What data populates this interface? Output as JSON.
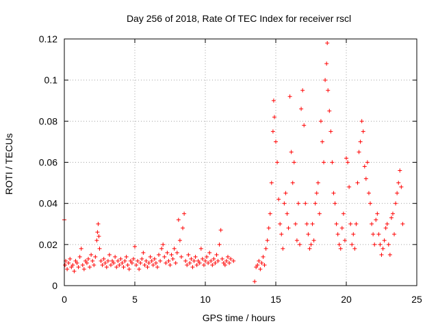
{
  "chart_data": {
    "type": "scatter",
    "title": "Day 256 of 2018, Rate Of TEC Index for receiver rscl",
    "xlabel": "GPS time / hours",
    "ylabel": "ROTI / TECUs",
    "xlim": [
      0,
      25
    ],
    "ylim": [
      0,
      0.12
    ],
    "xticks": [
      0,
      5,
      10,
      15,
      20,
      25
    ],
    "xtick_labels": [
      "0",
      "5",
      "10",
      "15",
      "20",
      "25"
    ],
    "yticks": [
      0,
      0.02,
      0.04,
      0.06,
      0.08,
      0.1,
      0.12
    ],
    "ytick_labels": [
      "0",
      "0.02",
      "0.04",
      "0.06",
      "0.08",
      "0.1",
      "0.12"
    ],
    "grid": true,
    "marker": "+",
    "series_color": "#ff0000",
    "series": [
      {
        "name": "ROTI",
        "points": [
          [
            0.0,
            0.032
          ],
          [
            0.05,
            0.01
          ],
          [
            0.1,
            0.012
          ],
          [
            0.2,
            0.008
          ],
          [
            0.3,
            0.011
          ],
          [
            0.4,
            0.013
          ],
          [
            0.5,
            0.009
          ],
          [
            0.6,
            0.01
          ],
          [
            0.7,
            0.007
          ],
          [
            0.8,
            0.012
          ],
          [
            0.9,
            0.011
          ],
          [
            1.0,
            0.009
          ],
          [
            1.1,
            0.014
          ],
          [
            1.2,
            0.018
          ],
          [
            1.3,
            0.01
          ],
          [
            1.4,
            0.008
          ],
          [
            1.5,
            0.012
          ],
          [
            1.6,
            0.011
          ],
          [
            1.7,
            0.013
          ],
          [
            1.8,
            0.009
          ],
          [
            1.9,
            0.015
          ],
          [
            2.0,
            0.012
          ],
          [
            2.1,
            0.01
          ],
          [
            2.2,
            0.014
          ],
          [
            2.3,
            0.022
          ],
          [
            2.35,
            0.026
          ],
          [
            2.4,
            0.03
          ],
          [
            2.45,
            0.024
          ],
          [
            2.5,
            0.018
          ],
          [
            2.6,
            0.012
          ],
          [
            2.7,
            0.01
          ],
          [
            2.8,
            0.013
          ],
          [
            2.9,
            0.011
          ],
          [
            3.0,
            0.009
          ],
          [
            3.1,
            0.012
          ],
          [
            3.2,
            0.015
          ],
          [
            3.3,
            0.01
          ],
          [
            3.4,
            0.012
          ],
          [
            3.5,
            0.011
          ],
          [
            3.6,
            0.014
          ],
          [
            3.7,
            0.009
          ],
          [
            3.8,
            0.012
          ],
          [
            3.9,
            0.01
          ],
          [
            4.0,
            0.013
          ],
          [
            4.1,
            0.011
          ],
          [
            4.2,
            0.009
          ],
          [
            4.3,
            0.012
          ],
          [
            4.4,
            0.014
          ],
          [
            4.5,
            0.01
          ],
          [
            4.6,
            0.008
          ],
          [
            4.7,
            0.012
          ],
          [
            4.8,
            0.011
          ],
          [
            4.9,
            0.013
          ],
          [
            5.0,
            0.019
          ],
          [
            5.1,
            0.01
          ],
          [
            5.2,
            0.012
          ],
          [
            5.3,
            0.008
          ],
          [
            5.4,
            0.011
          ],
          [
            5.5,
            0.013
          ],
          [
            5.6,
            0.016
          ],
          [
            5.7,
            0.01
          ],
          [
            5.8,
            0.012
          ],
          [
            5.9,
            0.009
          ],
          [
            6.0,
            0.011
          ],
          [
            6.1,
            0.014
          ],
          [
            6.2,
            0.012
          ],
          [
            6.3,
            0.01
          ],
          [
            6.4,
            0.013
          ],
          [
            6.5,
            0.011
          ],
          [
            6.6,
            0.009
          ],
          [
            6.7,
            0.015
          ],
          [
            6.8,
            0.012
          ],
          [
            6.9,
            0.018
          ],
          [
            7.0,
            0.02
          ],
          [
            7.1,
            0.014
          ],
          [
            7.2,
            0.011
          ],
          [
            7.3,
            0.016
          ],
          [
            7.4,
            0.012
          ],
          [
            7.5,
            0.01
          ],
          [
            7.6,
            0.015
          ],
          [
            7.7,
            0.013
          ],
          [
            7.8,
            0.018
          ],
          [
            7.9,
            0.011
          ],
          [
            8.0,
            0.016
          ],
          [
            8.1,
            0.032
          ],
          [
            8.2,
            0.022
          ],
          [
            8.3,
            0.014
          ],
          [
            8.4,
            0.028
          ],
          [
            8.5,
            0.035
          ],
          [
            8.6,
            0.012
          ],
          [
            8.7,
            0.01
          ],
          [
            8.8,
            0.015
          ],
          [
            8.9,
            0.011
          ],
          [
            9.0,
            0.013
          ],
          [
            9.1,
            0.009
          ],
          [
            9.2,
            0.012
          ],
          [
            9.3,
            0.014
          ],
          [
            9.4,
            0.01
          ],
          [
            9.5,
            0.012
          ],
          [
            9.6,
            0.011
          ],
          [
            9.7,
            0.018
          ],
          [
            9.8,
            0.013
          ],
          [
            9.9,
            0.01
          ],
          [
            10.0,
            0.012
          ],
          [
            10.1,
            0.014
          ],
          [
            10.2,
            0.011
          ],
          [
            10.3,
            0.016
          ],
          [
            10.4,
            0.012
          ],
          [
            10.5,
            0.01
          ],
          [
            10.6,
            0.013
          ],
          [
            10.7,
            0.011
          ],
          [
            10.8,
            0.015
          ],
          [
            10.9,
            0.012
          ],
          [
            11.0,
            0.02
          ],
          [
            11.1,
            0.027
          ],
          [
            11.2,
            0.013
          ],
          [
            11.3,
            0.011
          ],
          [
            11.4,
            0.01
          ],
          [
            11.5,
            0.012
          ],
          [
            11.6,
            0.014
          ],
          [
            11.7,
            0.011
          ],
          [
            11.8,
            0.013
          ],
          [
            12.0,
            0.012
          ],
          [
            13.5,
            0.002
          ],
          [
            13.6,
            0.009
          ],
          [
            13.7,
            0.01
          ],
          [
            13.8,
            0.012
          ],
          [
            13.9,
            0.008
          ],
          [
            14.0,
            0.011
          ],
          [
            14.1,
            0.014
          ],
          [
            14.2,
            0.01
          ],
          [
            14.3,
            0.018
          ],
          [
            14.4,
            0.022
          ],
          [
            14.5,
            0.028
          ],
          [
            14.6,
            0.035
          ],
          [
            14.7,
            0.05
          ],
          [
            14.8,
            0.075
          ],
          [
            14.85,
            0.09
          ],
          [
            14.9,
            0.082
          ],
          [
            15.0,
            0.07
          ],
          [
            15.1,
            0.06
          ],
          [
            15.2,
            0.042
          ],
          [
            15.3,
            0.03
          ],
          [
            15.4,
            0.025
          ],
          [
            15.5,
            0.018
          ],
          [
            15.6,
            0.04
          ],
          [
            15.7,
            0.045
          ],
          [
            15.8,
            0.035
          ],
          [
            15.9,
            0.028
          ],
          [
            16.0,
            0.092
          ],
          [
            16.1,
            0.065
          ],
          [
            16.2,
            0.05
          ],
          [
            16.3,
            0.06
          ],
          [
            16.4,
            0.03
          ],
          [
            16.5,
            0.022
          ],
          [
            16.6,
            0.04
          ],
          [
            16.7,
            0.02
          ],
          [
            16.8,
            0.086
          ],
          [
            16.9,
            0.095
          ],
          [
            17.0,
            0.078
          ],
          [
            17.1,
            0.04
          ],
          [
            17.2,
            0.03
          ],
          [
            17.3,
            0.025
          ],
          [
            17.4,
            0.018
          ],
          [
            17.5,
            0.02
          ],
          [
            17.6,
            0.03
          ],
          [
            17.7,
            0.022
          ],
          [
            17.8,
            0.04
          ],
          [
            17.9,
            0.045
          ],
          [
            18.0,
            0.05
          ],
          [
            18.1,
            0.035
          ],
          [
            18.2,
            0.08
          ],
          [
            18.3,
            0.07
          ],
          [
            18.4,
            0.06
          ],
          [
            18.5,
            0.1
          ],
          [
            18.6,
            0.108
          ],
          [
            18.65,
            0.118
          ],
          [
            18.7,
            0.095
          ],
          [
            18.8,
            0.085
          ],
          [
            18.9,
            0.075
          ],
          [
            19.0,
            0.06
          ],
          [
            19.1,
            0.045
          ],
          [
            19.2,
            0.04
          ],
          [
            19.3,
            0.03
          ],
          [
            19.4,
            0.025
          ],
          [
            19.5,
            0.02
          ],
          [
            19.6,
            0.018
          ],
          [
            19.7,
            0.028
          ],
          [
            19.8,
            0.035
          ],
          [
            19.9,
            0.022
          ],
          [
            20.0,
            0.062
          ],
          [
            20.1,
            0.06
          ],
          [
            20.2,
            0.048
          ],
          [
            20.3,
            0.03
          ],
          [
            20.4,
            0.02
          ],
          [
            20.5,
            0.025
          ],
          [
            20.6,
            0.018
          ],
          [
            20.7,
            0.03
          ],
          [
            20.8,
            0.05
          ],
          [
            20.9,
            0.065
          ],
          [
            21.0,
            0.07
          ],
          [
            21.1,
            0.08
          ],
          [
            21.2,
            0.075
          ],
          [
            21.3,
            0.058
          ],
          [
            21.4,
            0.052
          ],
          [
            21.5,
            0.06
          ],
          [
            21.6,
            0.045
          ],
          [
            21.7,
            0.04
          ],
          [
            21.8,
            0.03
          ],
          [
            21.9,
            0.025
          ],
          [
            22.0,
            0.02
          ],
          [
            22.1,
            0.032
          ],
          [
            22.2,
            0.035
          ],
          [
            22.3,
            0.025
          ],
          [
            22.4,
            0.02
          ],
          [
            22.5,
            0.015
          ],
          [
            22.6,
            0.018
          ],
          [
            22.7,
            0.022
          ],
          [
            22.8,
            0.028
          ],
          [
            22.9,
            0.03
          ],
          [
            23.0,
            0.02
          ],
          [
            23.1,
            0.015
          ],
          [
            23.2,
            0.033
          ],
          [
            23.3,
            0.035
          ],
          [
            23.4,
            0.025
          ],
          [
            23.5,
            0.04
          ],
          [
            23.6,
            0.045
          ],
          [
            23.7,
            0.05
          ],
          [
            23.8,
            0.056
          ],
          [
            23.9,
            0.048
          ],
          [
            24.0,
            0.03
          ]
        ]
      }
    ]
  }
}
